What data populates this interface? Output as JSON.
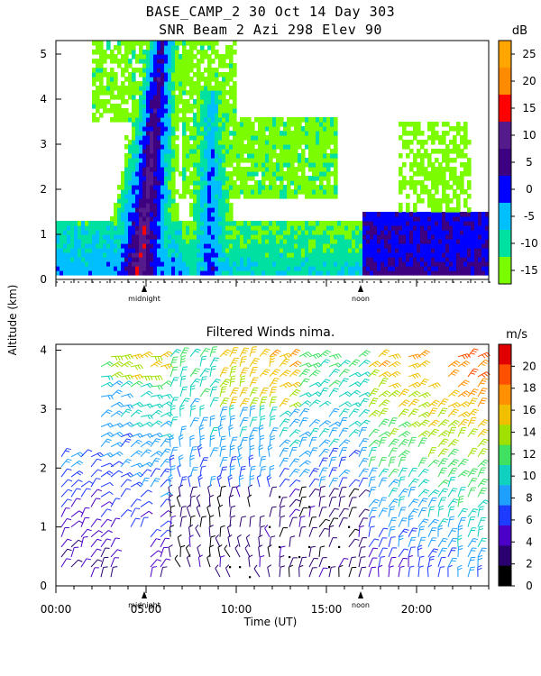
{
  "header": {
    "line1": "BASE_CAMP_2  30 Oct 14 Day 303",
    "line2": "SNR Beam 2 Azi 298 Elev 90"
  },
  "shared": {
    "ylabel": "Altitude (km)",
    "xlabel": "Time (UT)",
    "x_ticks": [
      "00:00",
      "05:00",
      "10:00",
      "15:00",
      "20:00"
    ],
    "markers": {
      "midnight": "midnight",
      "noon": "noon"
    }
  },
  "chart_data": [
    {
      "type": "heatmap",
      "title": "SNR Beam 2 Azi 298 Elev 90",
      "xlabel": "Time (UT)",
      "ylabel": "Altitude (km)",
      "xlim": [
        0,
        24
      ],
      "ylim": [
        0,
        5.3
      ],
      "y_ticks": [
        "0",
        "1",
        "2",
        "3",
        "4",
        "5"
      ],
      "colorbar": {
        "unit": "dB",
        "range": [
          -15,
          30
        ],
        "ticks": [
          "25",
          "20",
          "15",
          "10",
          "5",
          "0",
          "-5",
          "-10",
          "-15"
        ],
        "colors": [
          "#ffa500",
          "#ff8c00",
          "#ff0000",
          "#551a8b",
          "#3c0080",
          "#0000ff",
          "#00bfff",
          "#00e0a0",
          "#7cfc00"
        ]
      },
      "annotations": [
        "midnight",
        "noon"
      ]
    },
    {
      "type": "scatter",
      "title": "Filtered Winds nima.",
      "xlabel": "Time (UT)",
      "ylabel": "Altitude (km)",
      "xlim": [
        0,
        24
      ],
      "ylim": [
        0,
        4.1
      ],
      "x_ticks": [
        "00:00",
        "05:00",
        "10:00",
        "15:00",
        "20:00"
      ],
      "y_ticks": [
        "0",
        "1",
        "2",
        "3",
        "4"
      ],
      "colorbar": {
        "unit": "m/s",
        "range": [
          0,
          22
        ],
        "ticks": [
          "20",
          "18",
          "16",
          "14",
          "12",
          "10",
          "8",
          "6",
          "4",
          "2",
          "0"
        ]
      },
      "annotations": [
        "midnight",
        "noon"
      ]
    }
  ]
}
